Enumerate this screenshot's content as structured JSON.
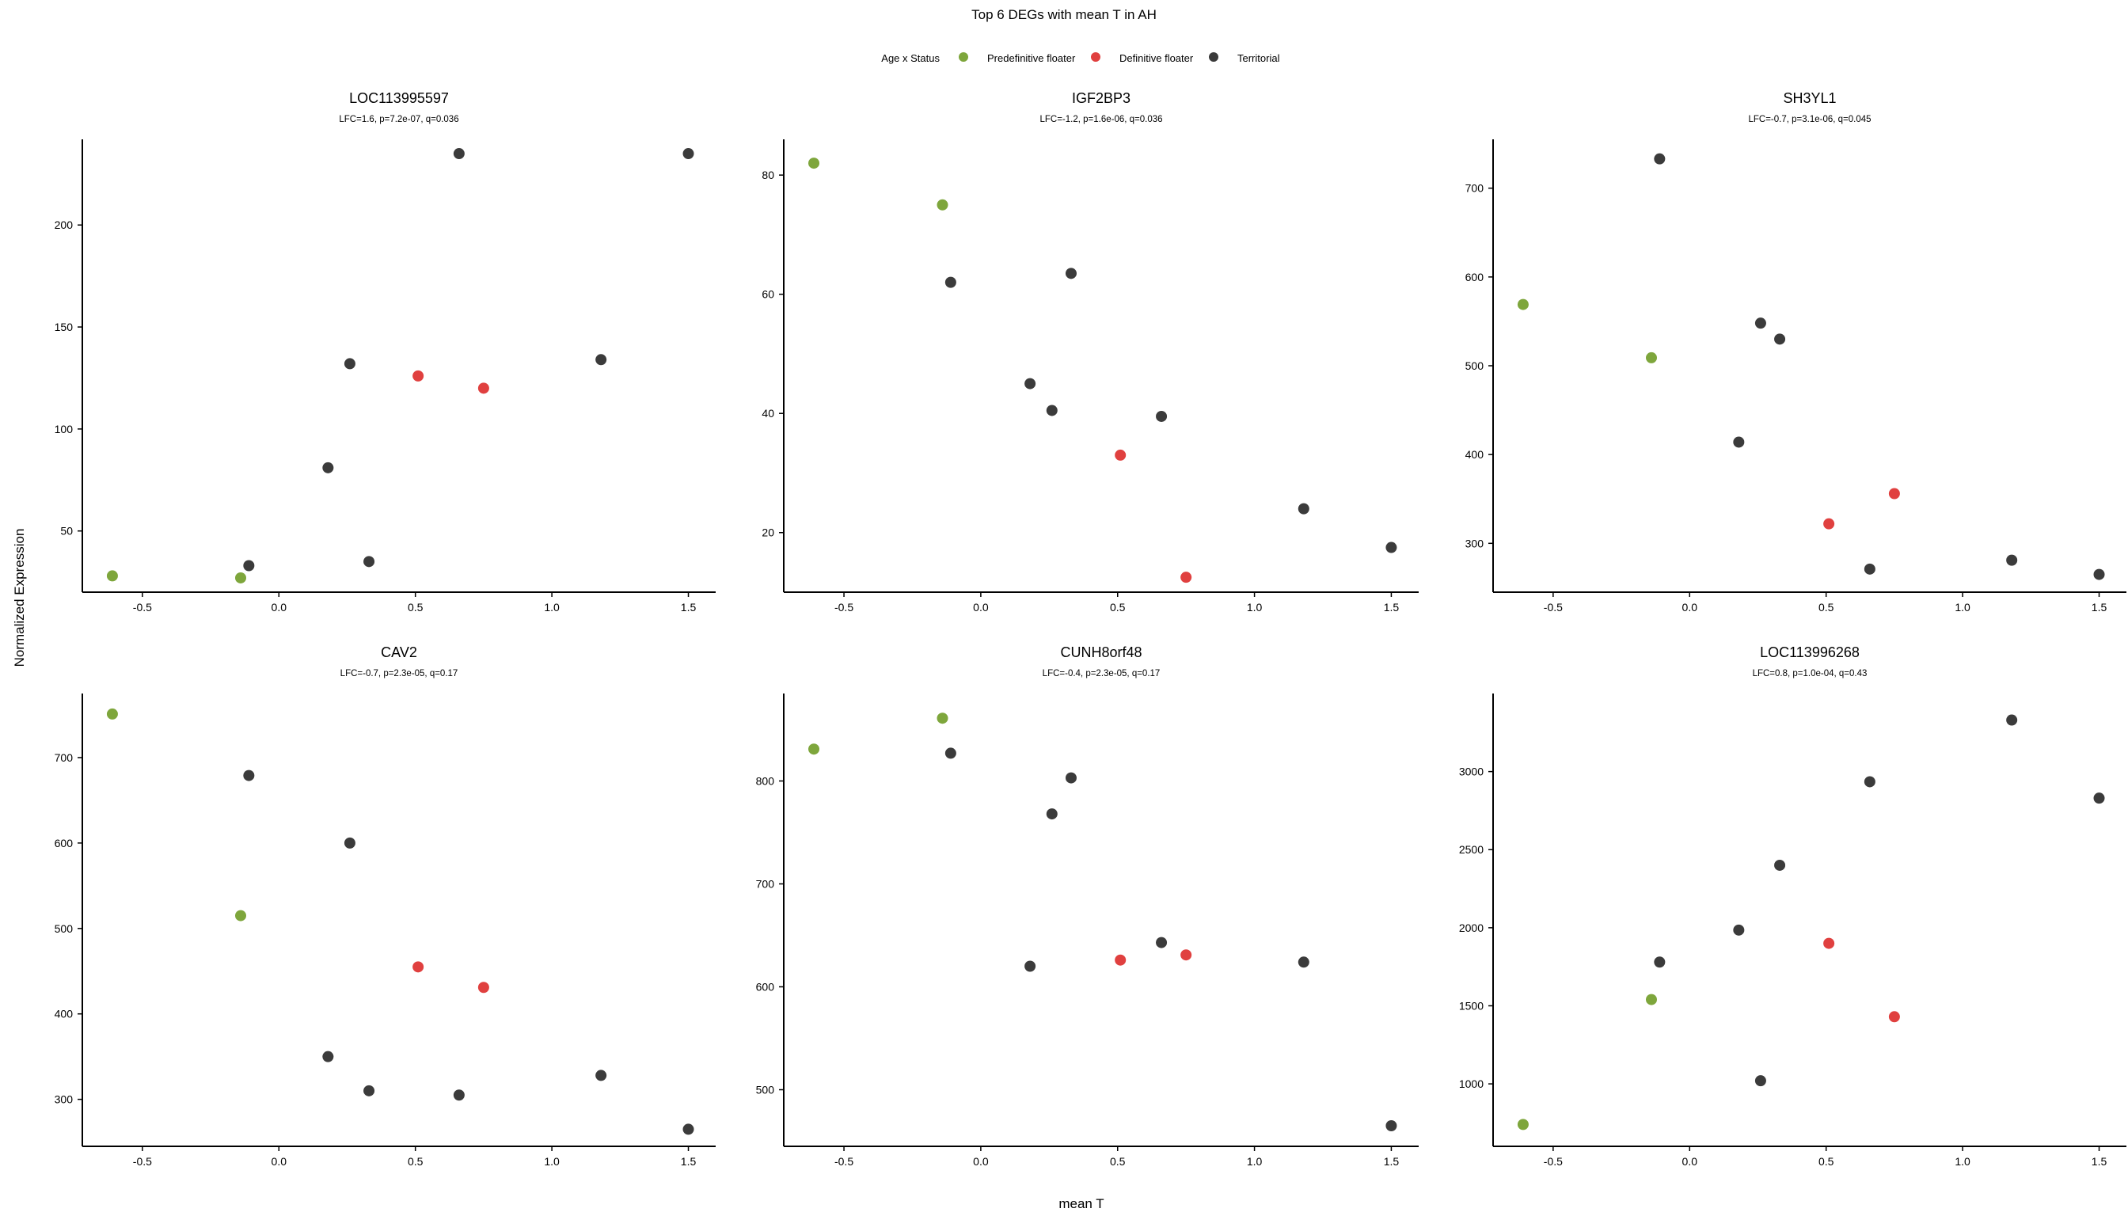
{
  "figure": {
    "title": "Top 6 DEGs with mean T in AH",
    "xlabel": "mean T",
    "ylabel": "Normalized Expression"
  },
  "legend": {
    "title": "Age x Status",
    "placement": "top-center",
    "items": [
      {
        "label": "Predefinitive floater",
        "color": "#7ea63c"
      },
      {
        "label": "Definitive floater",
        "color": "#e0403f"
      },
      {
        "label": "Territorial",
        "color": "#3b3b3b"
      }
    ]
  },
  "chart_data": [
    {
      "type": "scatter",
      "title": "LOC113995597",
      "subtitle": "LFC=1.6, p=7.2e-07, q=0.036",
      "xlim": [
        -0.72,
        1.6
      ],
      "ylim": [
        20,
        242
      ],
      "xticks": [
        "-0.5",
        "0.0",
        "0.5",
        "1.0",
        "1.5"
      ],
      "yticks": [
        "50",
        "100",
        "150",
        "200"
      ],
      "grid": false,
      "points": [
        {
          "x": -0.61,
          "y": 28,
          "group": "Predefinitive floater"
        },
        {
          "x": -0.14,
          "y": 27,
          "group": "Predefinitive floater"
        },
        {
          "x": 0.51,
          "y": 126,
          "group": "Definitive floater"
        },
        {
          "x": 0.75,
          "y": 120,
          "group": "Definitive floater"
        },
        {
          "x": -0.11,
          "y": 33,
          "group": "Territorial"
        },
        {
          "x": 0.18,
          "y": 81,
          "group": "Territorial"
        },
        {
          "x": 0.26,
          "y": 132,
          "group": "Territorial"
        },
        {
          "x": 0.33,
          "y": 35,
          "group": "Territorial"
        },
        {
          "x": 0.66,
          "y": 235,
          "group": "Territorial"
        },
        {
          "x": 1.18,
          "y": 134,
          "group": "Territorial"
        },
        {
          "x": 1.5,
          "y": 235,
          "group": "Territorial"
        }
      ]
    },
    {
      "type": "scatter",
      "title": "IGF2BP3",
      "subtitle": "LFC=-1.2, p=1.6e-06, q=0.036",
      "xlim": [
        -0.72,
        1.6
      ],
      "ylim": [
        10,
        86
      ],
      "xticks": [
        "-0.5",
        "0.0",
        "0.5",
        "1.0",
        "1.5"
      ],
      "yticks": [
        "20",
        "40",
        "60",
        "80"
      ],
      "grid": false,
      "points": [
        {
          "x": -0.61,
          "y": 82,
          "group": "Predefinitive floater"
        },
        {
          "x": -0.14,
          "y": 75,
          "group": "Predefinitive floater"
        },
        {
          "x": 0.51,
          "y": 33,
          "group": "Definitive floater"
        },
        {
          "x": 0.75,
          "y": 12.5,
          "group": "Definitive floater"
        },
        {
          "x": -0.11,
          "y": 62,
          "group": "Territorial"
        },
        {
          "x": 0.18,
          "y": 45,
          "group": "Territorial"
        },
        {
          "x": 0.26,
          "y": 40.5,
          "group": "Territorial"
        },
        {
          "x": 0.33,
          "y": 63.5,
          "group": "Territorial"
        },
        {
          "x": 0.66,
          "y": 39.5,
          "group": "Territorial"
        },
        {
          "x": 1.18,
          "y": 24,
          "group": "Territorial"
        },
        {
          "x": 1.5,
          "y": 17.5,
          "group": "Territorial"
        }
      ]
    },
    {
      "type": "scatter",
      "title": "SH3YL1",
      "subtitle": "LFC=-0.7, p=3.1e-06, q=0.045",
      "xlim": [
        -0.72,
        1.6
      ],
      "ylim": [
        245,
        755
      ],
      "xticks": [
        "-0.5",
        "0.0",
        "0.5",
        "1.0",
        "1.5"
      ],
      "yticks": [
        "300",
        "400",
        "500",
        "600",
        "700"
      ],
      "grid": false,
      "points": [
        {
          "x": -0.61,
          "y": 569,
          "group": "Predefinitive floater"
        },
        {
          "x": -0.14,
          "y": 509,
          "group": "Predefinitive floater"
        },
        {
          "x": 0.51,
          "y": 322,
          "group": "Definitive floater"
        },
        {
          "x": 0.75,
          "y": 356,
          "group": "Definitive floater"
        },
        {
          "x": -0.11,
          "y": 733,
          "group": "Territorial"
        },
        {
          "x": 0.18,
          "y": 414,
          "group": "Territorial"
        },
        {
          "x": 0.26,
          "y": 548,
          "group": "Territorial"
        },
        {
          "x": 0.33,
          "y": 530,
          "group": "Territorial"
        },
        {
          "x": 0.66,
          "y": 271,
          "group": "Territorial"
        },
        {
          "x": 1.18,
          "y": 281,
          "group": "Territorial"
        },
        {
          "x": 1.5,
          "y": 265,
          "group": "Territorial"
        }
      ]
    },
    {
      "type": "scatter",
      "title": "CAV2",
      "subtitle": "LFC=-0.7, p=2.3e-05, q=0.17",
      "xlim": [
        -0.72,
        1.6
      ],
      "ylim": [
        245,
        775
      ],
      "xticks": [
        "-0.5",
        "0.0",
        "0.5",
        "1.0",
        "1.5"
      ],
      "yticks": [
        "300",
        "400",
        "500",
        "600",
        "700"
      ],
      "grid": false,
      "points": [
        {
          "x": -0.61,
          "y": 751,
          "group": "Predefinitive floater"
        },
        {
          "x": -0.14,
          "y": 515,
          "group": "Predefinitive floater"
        },
        {
          "x": 0.51,
          "y": 455,
          "group": "Definitive floater"
        },
        {
          "x": 0.75,
          "y": 431,
          "group": "Definitive floater"
        },
        {
          "x": -0.11,
          "y": 679,
          "group": "Territorial"
        },
        {
          "x": 0.18,
          "y": 350,
          "group": "Territorial"
        },
        {
          "x": 0.26,
          "y": 600,
          "group": "Territorial"
        },
        {
          "x": 0.33,
          "y": 310,
          "group": "Territorial"
        },
        {
          "x": 0.66,
          "y": 305,
          "group": "Territorial"
        },
        {
          "x": 1.18,
          "y": 328,
          "group": "Territorial"
        },
        {
          "x": 1.5,
          "y": 265,
          "group": "Territorial"
        }
      ]
    },
    {
      "type": "scatter",
      "title": "CUNH8orf48",
      "subtitle": "LFC=-0.4, p=2.3e-05, q=0.17",
      "xlim": [
        -0.72,
        1.6
      ],
      "ylim": [
        445,
        885
      ],
      "xticks": [
        "-0.5",
        "0.0",
        "0.5",
        "1.0",
        "1.5"
      ],
      "yticks": [
        "500",
        "600",
        "700",
        "800"
      ],
      "grid": false,
      "points": [
        {
          "x": -0.61,
          "y": 831,
          "group": "Predefinitive floater"
        },
        {
          "x": -0.14,
          "y": 861,
          "group": "Predefinitive floater"
        },
        {
          "x": 0.51,
          "y": 626,
          "group": "Definitive floater"
        },
        {
          "x": 0.75,
          "y": 631,
          "group": "Definitive floater"
        },
        {
          "x": -0.11,
          "y": 827,
          "group": "Territorial"
        },
        {
          "x": 0.18,
          "y": 620,
          "group": "Territorial"
        },
        {
          "x": 0.26,
          "y": 768,
          "group": "Territorial"
        },
        {
          "x": 0.33,
          "y": 803,
          "group": "Territorial"
        },
        {
          "x": 0.66,
          "y": 643,
          "group": "Territorial"
        },
        {
          "x": 1.18,
          "y": 624,
          "group": "Territorial"
        },
        {
          "x": 1.5,
          "y": 465,
          "group": "Territorial"
        }
      ]
    },
    {
      "type": "scatter",
      "title": "LOC113996268",
      "subtitle": "LFC=0.8, p=1.0e-04, q=0.43",
      "xlim": [
        -0.72,
        1.6
      ],
      "ylim": [
        600,
        3500
      ],
      "xticks": [
        "-0.5",
        "0.0",
        "0.5",
        "1.0",
        "1.5"
      ],
      "yticks": [
        "1000",
        "1500",
        "2000",
        "2500",
        "3000"
      ],
      "grid": false,
      "points": [
        {
          "x": -0.61,
          "y": 740,
          "group": "Predefinitive floater"
        },
        {
          "x": -0.14,
          "y": 1540,
          "group": "Predefinitive floater"
        },
        {
          "x": 0.51,
          "y": 1900,
          "group": "Definitive floater"
        },
        {
          "x": 0.75,
          "y": 1430,
          "group": "Definitive floater"
        },
        {
          "x": -0.11,
          "y": 1780,
          "group": "Territorial"
        },
        {
          "x": 0.18,
          "y": 1985,
          "group": "Territorial"
        },
        {
          "x": 0.26,
          "y": 1020,
          "group": "Territorial"
        },
        {
          "x": 0.33,
          "y": 2400,
          "group": "Territorial"
        },
        {
          "x": 0.66,
          "y": 2935,
          "group": "Territorial"
        },
        {
          "x": 1.18,
          "y": 3330,
          "group": "Territorial"
        },
        {
          "x": 1.5,
          "y": 2830,
          "group": "Territorial"
        }
      ]
    }
  ]
}
